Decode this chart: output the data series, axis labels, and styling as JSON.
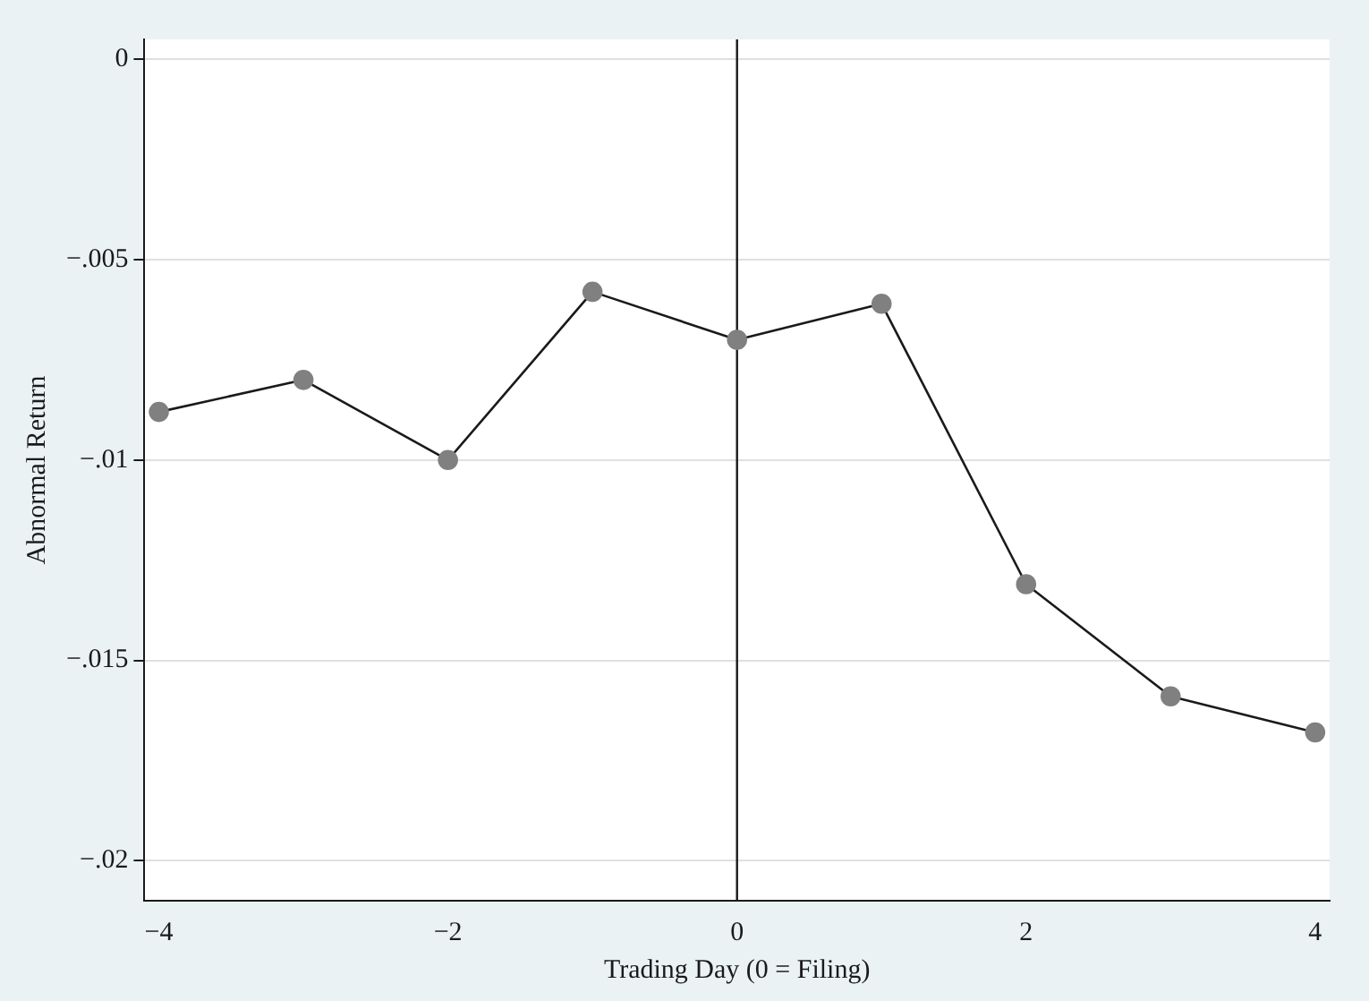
{
  "chart_data": {
    "type": "line",
    "xlabel": "Trading Day (0 = Filing)",
    "ylabel": "Abnormal Return",
    "x": [
      -4,
      -3,
      -2,
      -1,
      0,
      1,
      2,
      3,
      4
    ],
    "series": [
      {
        "color": "#808080",
        "values": [
          -0.0088,
          -0.008,
          -0.01,
          -0.0058,
          -0.007,
          -0.0061,
          -0.0131,
          -0.0159,
          -0.0168
        ]
      }
    ],
    "xlim": [
      -4.1,
      4.1
    ],
    "ylim": [
      -0.021,
      0.0005
    ],
    "xticks": [
      {
        "value": -4,
        "label": "−4"
      },
      {
        "value": -2,
        "label": "−2"
      },
      0,
      2,
      4
    ],
    "yticks": [
      0,
      {
        "value": -0.005,
        "label": "−.005"
      },
      {
        "value": -0.01,
        "label": "−.01"
      },
      {
        "value": -0.015,
        "label": "−.015"
      },
      {
        "value": -0.02,
        "label": "−.02"
      }
    ],
    "ref_lines": [
      {
        "axis": "x",
        "value": 0
      }
    ],
    "grid": "y",
    "legend": false,
    "marker": "circle",
    "line_style": "solid"
  }
}
